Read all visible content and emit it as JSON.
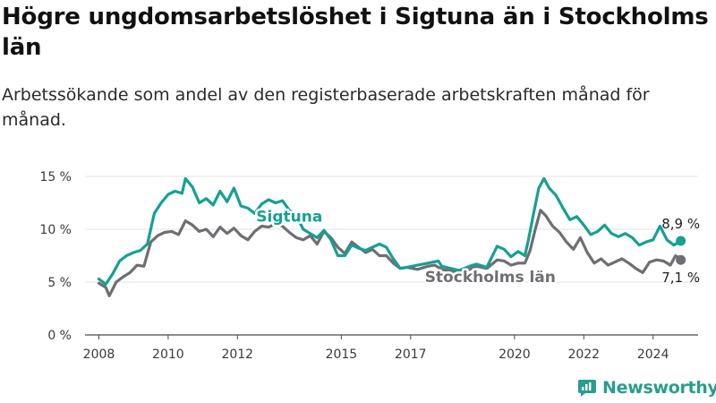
{
  "title": "Högre ungdomsarbetslöshet i Sigtuna än i Stockholms län",
  "subtitle": "Arbetssökande som andel av den registerbaserade arbetskraften månad för månad.",
  "brand": "Newsworthy",
  "colors": {
    "sigtuna": "#16a094",
    "stockholm": "#6e6e73",
    "brand": "#2a9d8f",
    "grid": "#e3e3e3",
    "axis": "#4a4a4a"
  },
  "chart_data": {
    "type": "line",
    "xlabel": "",
    "ylabel": "",
    "ylim": [
      0,
      15
    ],
    "xlim": [
      2007.6,
      2025.3
    ],
    "grid": true,
    "y_ticks": [
      0,
      5,
      10,
      15
    ],
    "y_tick_labels": [
      "0 %",
      "5 %",
      "10 %",
      "15 %"
    ],
    "x_ticks": [
      2008,
      2010,
      2012,
      2015,
      2017,
      2020,
      2022,
      2024
    ],
    "x_tick_labels": [
      "2008",
      "2010",
      "2012",
      "2015",
      "2017",
      "2020",
      "2022",
      "2024"
    ],
    "series": [
      {
        "name": "Sigtuna",
        "end_label": "8,9 %",
        "points": [
          [
            2008.0,
            5.3
          ],
          [
            2008.2,
            4.8
          ],
          [
            2008.4,
            5.8
          ],
          [
            2008.6,
            7.0
          ],
          [
            2008.8,
            7.5
          ],
          [
            2009.0,
            7.8
          ],
          [
            2009.2,
            8.0
          ],
          [
            2009.4,
            8.6
          ],
          [
            2009.6,
            11.5
          ],
          [
            2009.8,
            12.5
          ],
          [
            2010.0,
            13.3
          ],
          [
            2010.2,
            13.6
          ],
          [
            2010.4,
            13.4
          ],
          [
            2010.5,
            14.8
          ],
          [
            2010.7,
            14.0
          ],
          [
            2010.9,
            12.5
          ],
          [
            2011.1,
            12.9
          ],
          [
            2011.3,
            12.3
          ],
          [
            2011.5,
            13.6
          ],
          [
            2011.7,
            12.6
          ],
          [
            2011.9,
            13.9
          ],
          [
            2012.1,
            12.2
          ],
          [
            2012.3,
            12.0
          ],
          [
            2012.5,
            11.5
          ],
          [
            2012.7,
            12.4
          ],
          [
            2012.9,
            12.8
          ],
          [
            2013.1,
            12.5
          ],
          [
            2013.3,
            12.7
          ],
          [
            2013.5,
            11.8
          ],
          [
            2013.7,
            11.3
          ],
          [
            2013.9,
            10.0
          ],
          [
            2014.1,
            9.6
          ],
          [
            2014.3,
            9.2
          ],
          [
            2014.5,
            9.9
          ],
          [
            2014.7,
            9.0
          ],
          [
            2014.9,
            7.5
          ],
          [
            2015.1,
            7.5
          ],
          [
            2015.3,
            8.5
          ],
          [
            2015.5,
            8.2
          ],
          [
            2015.7,
            8.0
          ],
          [
            2015.9,
            8.3
          ],
          [
            2016.1,
            8.6
          ],
          [
            2016.3,
            8.3
          ],
          [
            2016.5,
            7.2
          ],
          [
            2016.7,
            6.3
          ],
          [
            2016.9,
            6.4
          ],
          [
            2017.2,
            6.6
          ],
          [
            2017.5,
            6.8
          ],
          [
            2017.8,
            7.0
          ],
          [
            2017.9,
            6.5
          ],
          [
            2018.4,
            6.1
          ],
          [
            2018.7,
            6.5
          ],
          [
            2018.9,
            6.7
          ],
          [
            2019.2,
            6.4
          ],
          [
            2019.5,
            8.4
          ],
          [
            2019.7,
            8.1
          ],
          [
            2019.9,
            7.4
          ],
          [
            2020.1,
            7.9
          ],
          [
            2020.3,
            7.5
          ],
          [
            2020.4,
            9.0
          ],
          [
            2020.55,
            11.5
          ],
          [
            2020.7,
            13.9
          ],
          [
            2020.85,
            14.8
          ],
          [
            2021.0,
            13.9
          ],
          [
            2021.2,
            13.2
          ],
          [
            2021.4,
            12.0
          ],
          [
            2021.6,
            10.9
          ],
          [
            2021.8,
            11.2
          ],
          [
            2022.0,
            10.4
          ],
          [
            2022.2,
            9.5
          ],
          [
            2022.4,
            9.8
          ],
          [
            2022.6,
            10.4
          ],
          [
            2022.8,
            9.6
          ],
          [
            2023.0,
            9.3
          ],
          [
            2023.2,
            9.6
          ],
          [
            2023.4,
            9.2
          ],
          [
            2023.6,
            8.5
          ],
          [
            2023.8,
            8.8
          ],
          [
            2024.0,
            9.0
          ],
          [
            2024.2,
            10.3
          ],
          [
            2024.4,
            9.0
          ],
          [
            2024.6,
            8.5
          ],
          [
            2024.8,
            8.9
          ]
        ]
      },
      {
        "name": "Stockholms län",
        "end_label": "7,1 %",
        "points": [
          [
            2008.0,
            4.9
          ],
          [
            2008.2,
            4.5
          ],
          [
            2008.3,
            3.7
          ],
          [
            2008.5,
            5.0
          ],
          [
            2008.7,
            5.5
          ],
          [
            2008.9,
            5.9
          ],
          [
            2009.1,
            6.6
          ],
          [
            2009.3,
            6.5
          ],
          [
            2009.5,
            8.8
          ],
          [
            2009.7,
            9.4
          ],
          [
            2009.9,
            9.7
          ],
          [
            2010.1,
            9.8
          ],
          [
            2010.3,
            9.5
          ],
          [
            2010.5,
            10.8
          ],
          [
            2010.7,
            10.4
          ],
          [
            2010.9,
            9.8
          ],
          [
            2011.1,
            10.0
          ],
          [
            2011.3,
            9.3
          ],
          [
            2011.5,
            10.2
          ],
          [
            2011.7,
            9.6
          ],
          [
            2011.9,
            10.1
          ],
          [
            2012.1,
            9.4
          ],
          [
            2012.3,
            9.0
          ],
          [
            2012.5,
            9.8
          ],
          [
            2012.7,
            10.3
          ],
          [
            2012.9,
            10.2
          ],
          [
            2013.1,
            10.5
          ],
          [
            2013.3,
            10.3
          ],
          [
            2013.5,
            9.7
          ],
          [
            2013.7,
            9.2
          ],
          [
            2013.9,
            9.0
          ],
          [
            2014.1,
            9.4
          ],
          [
            2014.3,
            8.6
          ],
          [
            2014.5,
            9.8
          ],
          [
            2014.7,
            9.2
          ],
          [
            2014.9,
            8.3
          ],
          [
            2015.1,
            7.7
          ],
          [
            2015.3,
            8.8
          ],
          [
            2015.5,
            8.3
          ],
          [
            2015.7,
            7.8
          ],
          [
            2015.9,
            8.1
          ],
          [
            2016.1,
            7.5
          ],
          [
            2016.3,
            7.5
          ],
          [
            2016.5,
            6.8
          ],
          [
            2016.7,
            6.3
          ],
          [
            2016.9,
            6.4
          ],
          [
            2017.2,
            6.2
          ],
          [
            2017.5,
            6.5
          ],
          [
            2017.7,
            6.6
          ],
          [
            2017.9,
            6.2
          ],
          [
            2018.4,
            5.9
          ],
          [
            2018.7,
            6.2
          ],
          [
            2018.9,
            6.5
          ],
          [
            2019.2,
            6.3
          ],
          [
            2019.5,
            7.1
          ],
          [
            2019.7,
            7.0
          ],
          [
            2019.9,
            6.6
          ],
          [
            2020.1,
            6.8
          ],
          [
            2020.3,
            6.8
          ],
          [
            2020.45,
            8.0
          ],
          [
            2020.6,
            10.0
          ],
          [
            2020.75,
            11.8
          ],
          [
            2020.9,
            11.3
          ],
          [
            2021.1,
            10.3
          ],
          [
            2021.3,
            9.7
          ],
          [
            2021.5,
            8.8
          ],
          [
            2021.7,
            8.1
          ],
          [
            2021.9,
            9.2
          ],
          [
            2022.1,
            7.8
          ],
          [
            2022.3,
            6.8
          ],
          [
            2022.5,
            7.2
          ],
          [
            2022.7,
            6.6
          ],
          [
            2022.9,
            6.9
          ],
          [
            2023.1,
            7.2
          ],
          [
            2023.3,
            6.8
          ],
          [
            2023.5,
            6.3
          ],
          [
            2023.7,
            5.9
          ],
          [
            2023.9,
            6.9
          ],
          [
            2024.1,
            7.1
          ],
          [
            2024.3,
            7.0
          ],
          [
            2024.5,
            6.6
          ],
          [
            2024.65,
            7.5
          ],
          [
            2024.8,
            7.1
          ]
        ]
      }
    ],
    "labels": [
      {
        "series": "Sigtuna",
        "text": "Sigtuna",
        "x": 2013.5,
        "y": 10.7
      },
      {
        "series": "Stockholms län",
        "text": "Stockholms län",
        "x": 2019.3,
        "y": 5.0
      }
    ]
  }
}
